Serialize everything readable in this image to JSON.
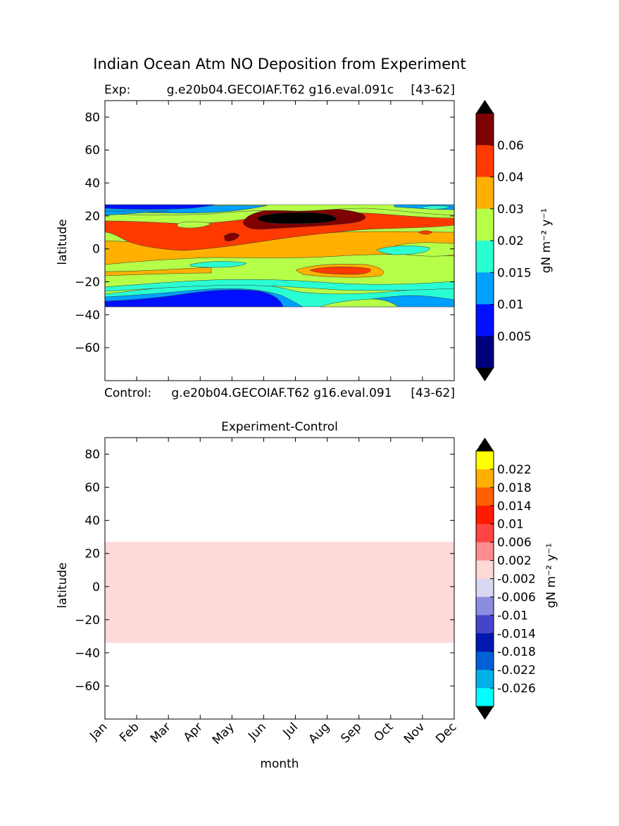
{
  "figure": {
    "title": "Indian Ocean Atm NO Deposition from Experiment"
  },
  "chart_data": [
    {
      "type": "heatmap",
      "panel": "top",
      "title_left": "Exp:",
      "title_center": "g.e20b04.GECOIAF.T62 g16.eval.091c",
      "title_right": "[43-62]",
      "ylabel": "latitude",
      "xlabel": "",
      "ylim": [
        -80,
        90
      ],
      "yticks": [
        "80",
        "60",
        "40",
        "20",
        "0",
        "−20",
        "−40",
        "−60"
      ],
      "ytick_values": [
        80,
        60,
        40,
        20,
        0,
        -20,
        -40,
        -60
      ],
      "xlim": [
        0,
        11
      ],
      "data_lat_range": [
        -34,
        27
      ],
      "colorbar": {
        "label": "gN m⁻² y⁻¹",
        "levels": [
          0,
          0.005,
          0.01,
          0.015,
          0.02,
          0.03,
          0.04,
          0.06,
          0.07
        ],
        "tick_labels": [
          "0.005",
          "0.01",
          "0.015",
          "0.02",
          "0.03",
          "0.04",
          "0.06"
        ],
        "colors": [
          "#00007f",
          "#0010ff",
          "#00a0ff",
          "#2affd4",
          "#b6ff49",
          "#ffb000",
          "#ff3a00",
          "#7f0000"
        ],
        "over_color": "#000000",
        "under_color": "#000000"
      },
      "regions_description_colors": {
        "background_band": "#b6ff49"
      }
    },
    {
      "type": "heatmap",
      "panel": "bottom",
      "title": "Experiment-Control",
      "ylabel": "latitude",
      "xlabel": "month",
      "ylim": [
        -80,
        90
      ],
      "yticks": [
        "80",
        "60",
        "40",
        "20",
        "0",
        "−20",
        "−40",
        "−60"
      ],
      "ytick_values": [
        80,
        60,
        40,
        20,
        0,
        -20,
        -40,
        -60
      ],
      "categories": [
        "Jan",
        "Feb",
        "Mar",
        "Apr",
        "May",
        "Jun",
        "Jul",
        "Aug",
        "Sep",
        "Oct",
        "Nov",
        "Dec"
      ],
      "data_lat_range": [
        -34,
        27
      ],
      "uniform_value_band": [
        0,
        0.002
      ],
      "uniform_color": "#ffd8d8",
      "colorbar": {
        "label": "gN m⁻² y⁻¹",
        "tick_labels": [
          "0.022",
          "0.018",
          "0.014",
          "0.01",
          "0.006",
          "0.002",
          "-0.002",
          "-0.006",
          "-0.01",
          "-0.014",
          "-0.018",
          "-0.022",
          "-0.026"
        ],
        "colors_top_to_bottom": [
          "#ffff00",
          "#ffb000",
          "#ff6000",
          "#ff1a00",
          "#ff4444",
          "#ff8c8c",
          "#ffd8d8",
          "#d8d8f2",
          "#8c8ce0",
          "#4444cc",
          "#0018b0",
          "#0060d8",
          "#00b0e8",
          "#00ffff"
        ],
        "over_color": "#000000",
        "under_color": "#000000"
      }
    }
  ],
  "subtitle_control": {
    "left": "Control:",
    "center": "g.e20b04.GECOIAF.T62 g16.eval.091",
    "right": "[43-62]"
  }
}
